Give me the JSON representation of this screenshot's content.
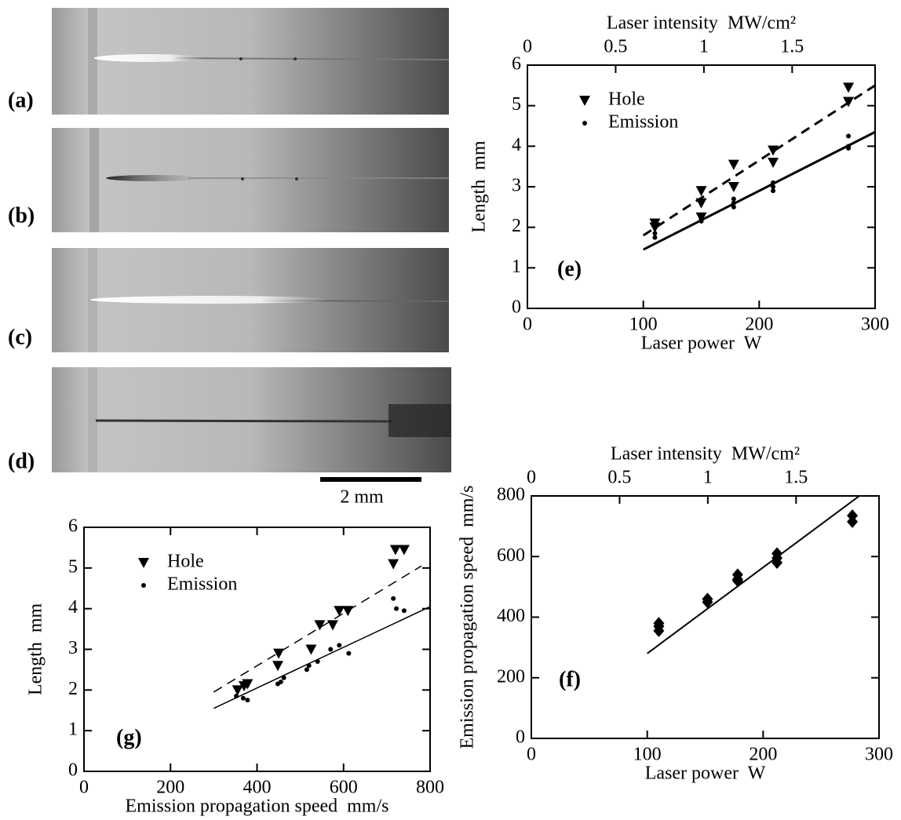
{
  "panels": [
    {
      "label": "(a)"
    },
    {
      "label": "(b)"
    },
    {
      "label": "(c)"
    },
    {
      "label": "(d)"
    }
  ],
  "scale_bar": "2 mm",
  "chart_data": [
    {
      "type": "scatter",
      "panel_label": "(e)",
      "xlabel": "Laser power  W",
      "ylabel": "Length  mm",
      "x2label": "Laser intensity  MW/cm²",
      "xlim": [
        0,
        300
      ],
      "xticks": [
        0,
        100,
        200,
        300
      ],
      "x2lim": [
        0,
        1.97
      ],
      "x2ticks": [
        0,
        0.5,
        1,
        1.5
      ],
      "ylim": [
        0,
        6
      ],
      "yticks": [
        0,
        1,
        2,
        3,
        4,
        5,
        6
      ],
      "legend": "upper left",
      "series": [
        {
          "name": "Hole",
          "marker": "triangle-down",
          "color": "#000",
          "x": [
            110,
            110,
            150,
            150,
            150,
            178,
            178,
            212,
            212,
            277,
            277
          ],
          "values": [
            2.1,
            2.0,
            2.9,
            2.6,
            2.25,
            3.55,
            3.0,
            3.9,
            3.6,
            5.45,
            5.1
          ]
        },
        {
          "name": "Emission",
          "marker": "dot",
          "color": "#000",
          "x": [
            110,
            110,
            150,
            150,
            178,
            178,
            178,
            212,
            212,
            212,
            277,
            277,
            277
          ],
          "values": [
            1.85,
            1.75,
            2.2,
            2.15,
            2.7,
            2.6,
            2.5,
            3.1,
            3.0,
            2.9,
            4.25,
            4.0,
            3.95
          ]
        }
      ],
      "fits": [
        {
          "x": [
            100,
            300
          ],
          "values": [
            1.8,
            5.5
          ],
          "dashed": true,
          "width": 3
        },
        {
          "x": [
            100,
            300
          ],
          "values": [
            1.45,
            4.35
          ],
          "dashed": false,
          "width": 3
        }
      ]
    },
    {
      "type": "scatter",
      "panel_label": "(f)",
      "xlabel": "Laser power  W",
      "ylabel": "Emission propagation speed  mm/s",
      "x2label": "Laser intensity  MW/cm²",
      "xlim": [
        0,
        300
      ],
      "xticks": [
        0,
        100,
        200,
        300
      ],
      "x2lim": [
        0,
        1.97
      ],
      "x2ticks": [
        0,
        0.5,
        1,
        1.5
      ],
      "ylim": [
        0,
        800
      ],
      "yticks": [
        0,
        200,
        400,
        600,
        800
      ],
      "series": [
        {
          "marker": "diamond",
          "color": "#000",
          "x": [
            110,
            110,
            110,
            152,
            152,
            178,
            178,
            178,
            212,
            212,
            212,
            277,
            277
          ],
          "values": [
            380,
            370,
            355,
            460,
            450,
            540,
            525,
            520,
            610,
            595,
            580,
            735,
            715
          ]
        }
      ],
      "fits": [
        {
          "x": [
            100,
            283
          ],
          "values": [
            280,
            800
          ],
          "dashed": false,
          "width": 2
        }
      ]
    },
    {
      "type": "scatter",
      "panel_label": "(g)",
      "xlabel": "Emission propagation speed  mm/s",
      "ylabel": "Length  mm",
      "xlim": [
        0,
        800
      ],
      "xticks": [
        0,
        200,
        400,
        600,
        800
      ],
      "ylim": [
        0,
        6
      ],
      "yticks": [
        0,
        1,
        2,
        3,
        4,
        5,
        6
      ],
      "legend": "upper left",
      "series": [
        {
          "name": "Hole",
          "marker": "triangle-down",
          "color": "#000",
          "x": [
            355,
            370,
            378,
            450,
            448,
            525,
            545,
            575,
            590,
            610,
            715,
            720,
            740
          ],
          "values": [
            2.0,
            2.1,
            2.15,
            2.9,
            2.6,
            3.0,
            3.6,
            3.6,
            3.95,
            3.95,
            5.1,
            5.45,
            5.45
          ]
        },
        {
          "name": "Emission",
          "marker": "dot",
          "color": "#000",
          "x": [
            352,
            368,
            378,
            448,
            455,
            462,
            515,
            520,
            540,
            570,
            590,
            612,
            715,
            722,
            740
          ],
          "values": [
            1.85,
            1.8,
            1.75,
            2.15,
            2.2,
            2.3,
            2.5,
            2.6,
            2.7,
            3.0,
            3.1,
            2.9,
            4.25,
            4.0,
            3.95
          ]
        }
      ],
      "fits": [
        {
          "x": [
            300,
            780
          ],
          "values": [
            1.95,
            5.05
          ],
          "dashed": true,
          "width": 1.5
        },
        {
          "x": [
            300,
            800
          ],
          "values": [
            1.55,
            4.05
          ],
          "dashed": false,
          "width": 1.5
        }
      ]
    }
  ]
}
